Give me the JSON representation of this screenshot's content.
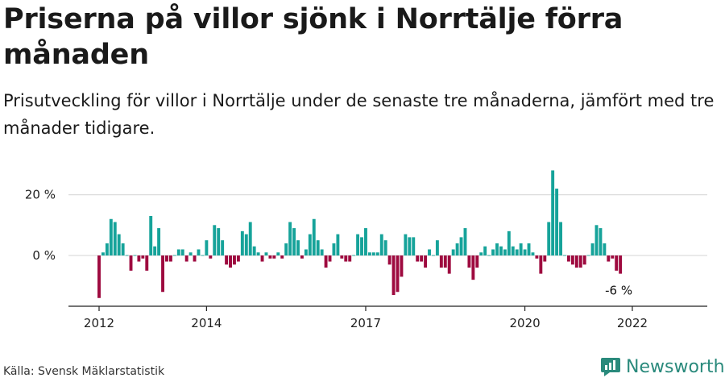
{
  "title": "Priserna på villor sjönk i Norrtälje förra månaden",
  "subtitle": "Prisutveckling för villor i Norrtälje under de senaste tre månaderna, jämfört med tre månader tidigare.",
  "source": "Källa: Svensk Mäklarstatistik",
  "brand": "Newsworthy",
  "colors": {
    "positive": "#16a39a",
    "negative": "#9e0a3f",
    "grid": "#dddddd",
    "brand": "#2a8a7c"
  },
  "chart_data": {
    "type": "bar",
    "title": "Priserna på villor sjönk i Norrtälje förra månaden",
    "xlabel": "",
    "ylabel": "",
    "ylim": [
      -17,
      28
    ],
    "y_ticks": [
      {
        "value": 0,
        "label": "0 %"
      },
      {
        "value": 20,
        "label": "20 %"
      }
    ],
    "x_ticks": [
      {
        "index": 0,
        "label": "2012"
      },
      {
        "index": 27,
        "label": "2014"
      },
      {
        "index": 67,
        "label": "2017"
      },
      {
        "index": 107,
        "label": "2020"
      },
      {
        "index": 134,
        "label": "2022"
      }
    ],
    "start": "2012-01",
    "last_label": "-6 %",
    "values": [
      -14,
      1,
      4,
      12,
      11,
      7,
      4,
      0,
      -5,
      0,
      -2,
      -1,
      -5,
      13,
      3,
      9,
      -12,
      -2,
      -2,
      0,
      2,
      2,
      -2,
      1,
      -2,
      2,
      0,
      5,
      -1,
      10,
      9,
      5,
      -3,
      -4,
      -3,
      -2,
      8,
      7,
      11,
      3,
      1,
      -2,
      1,
      -1,
      -1,
      1,
      -1,
      4,
      11,
      9,
      5,
      -1,
      2,
      7,
      12,
      5,
      2,
      -4,
      -2,
      4,
      7,
      -1,
      -2,
      -2,
      0,
      7,
      6,
      9,
      1,
      1,
      1,
      7,
      5,
      -3,
      -13,
      -12,
      -7,
      7,
      6,
      6,
      -2,
      -2,
      -4,
      2,
      0,
      5,
      -4,
      -4,
      -6,
      2,
      4,
      6,
      9,
      -4,
      -8,
      -4,
      1,
      3,
      0,
      2,
      4,
      3,
      2,
      8,
      3,
      2,
      4,
      2,
      4,
      1,
      -1,
      -6,
      -2,
      11,
      28,
      22,
      11,
      0,
      -2,
      -3,
      -4,
      -4,
      -3,
      0,
      4,
      10,
      9,
      4,
      -2,
      -1,
      -5,
      -6
    ]
  }
}
